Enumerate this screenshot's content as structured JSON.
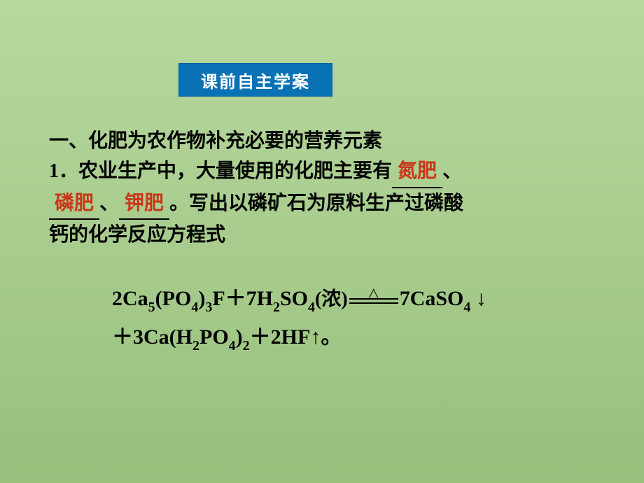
{
  "title": "课前自主学案",
  "section_heading": "一、化肥为农作物补充必要的营养元素",
  "body": {
    "line1_pre": "1．农业生产中，大量使用的化肥主要有",
    "fill1": "氮肥",
    "line1_post": "、",
    "fill2": "磷肥",
    "sep": "、",
    "fill3": "钾肥",
    "line2_post": "。写出以磷矿石为原料生产过磷酸",
    "line3": "钙的化学反应方程式"
  },
  "equation": {
    "lhs_1": "2Ca",
    "s5": "5",
    "lhs_2": "(PO",
    "s4a": "4",
    "lhs_3": ")",
    "s3a": "3",
    "lhs_4": "F＋7H",
    "s2a": "2",
    "lhs_5": "SO",
    "s4b": "4",
    "conc": "(浓)",
    "delta": "△",
    "rhs_1": "7CaSO",
    "s4c": "4",
    "down": "↓",
    "line2_1": "＋3Ca(H",
    "s2b": "2",
    "line2_2": "PO",
    "s4d": "4",
    "line2_3": ")",
    "s2c": "2",
    "line2_4": "＋2HF↑",
    "period": "。"
  },
  "style": {
    "title_bg": "#0872b4",
    "title_color": "#ffffff",
    "fill_color": "#c93618",
    "body_color": "#000000",
    "bg_top": "#b7d89e",
    "bg_bottom": "#97c07b"
  }
}
